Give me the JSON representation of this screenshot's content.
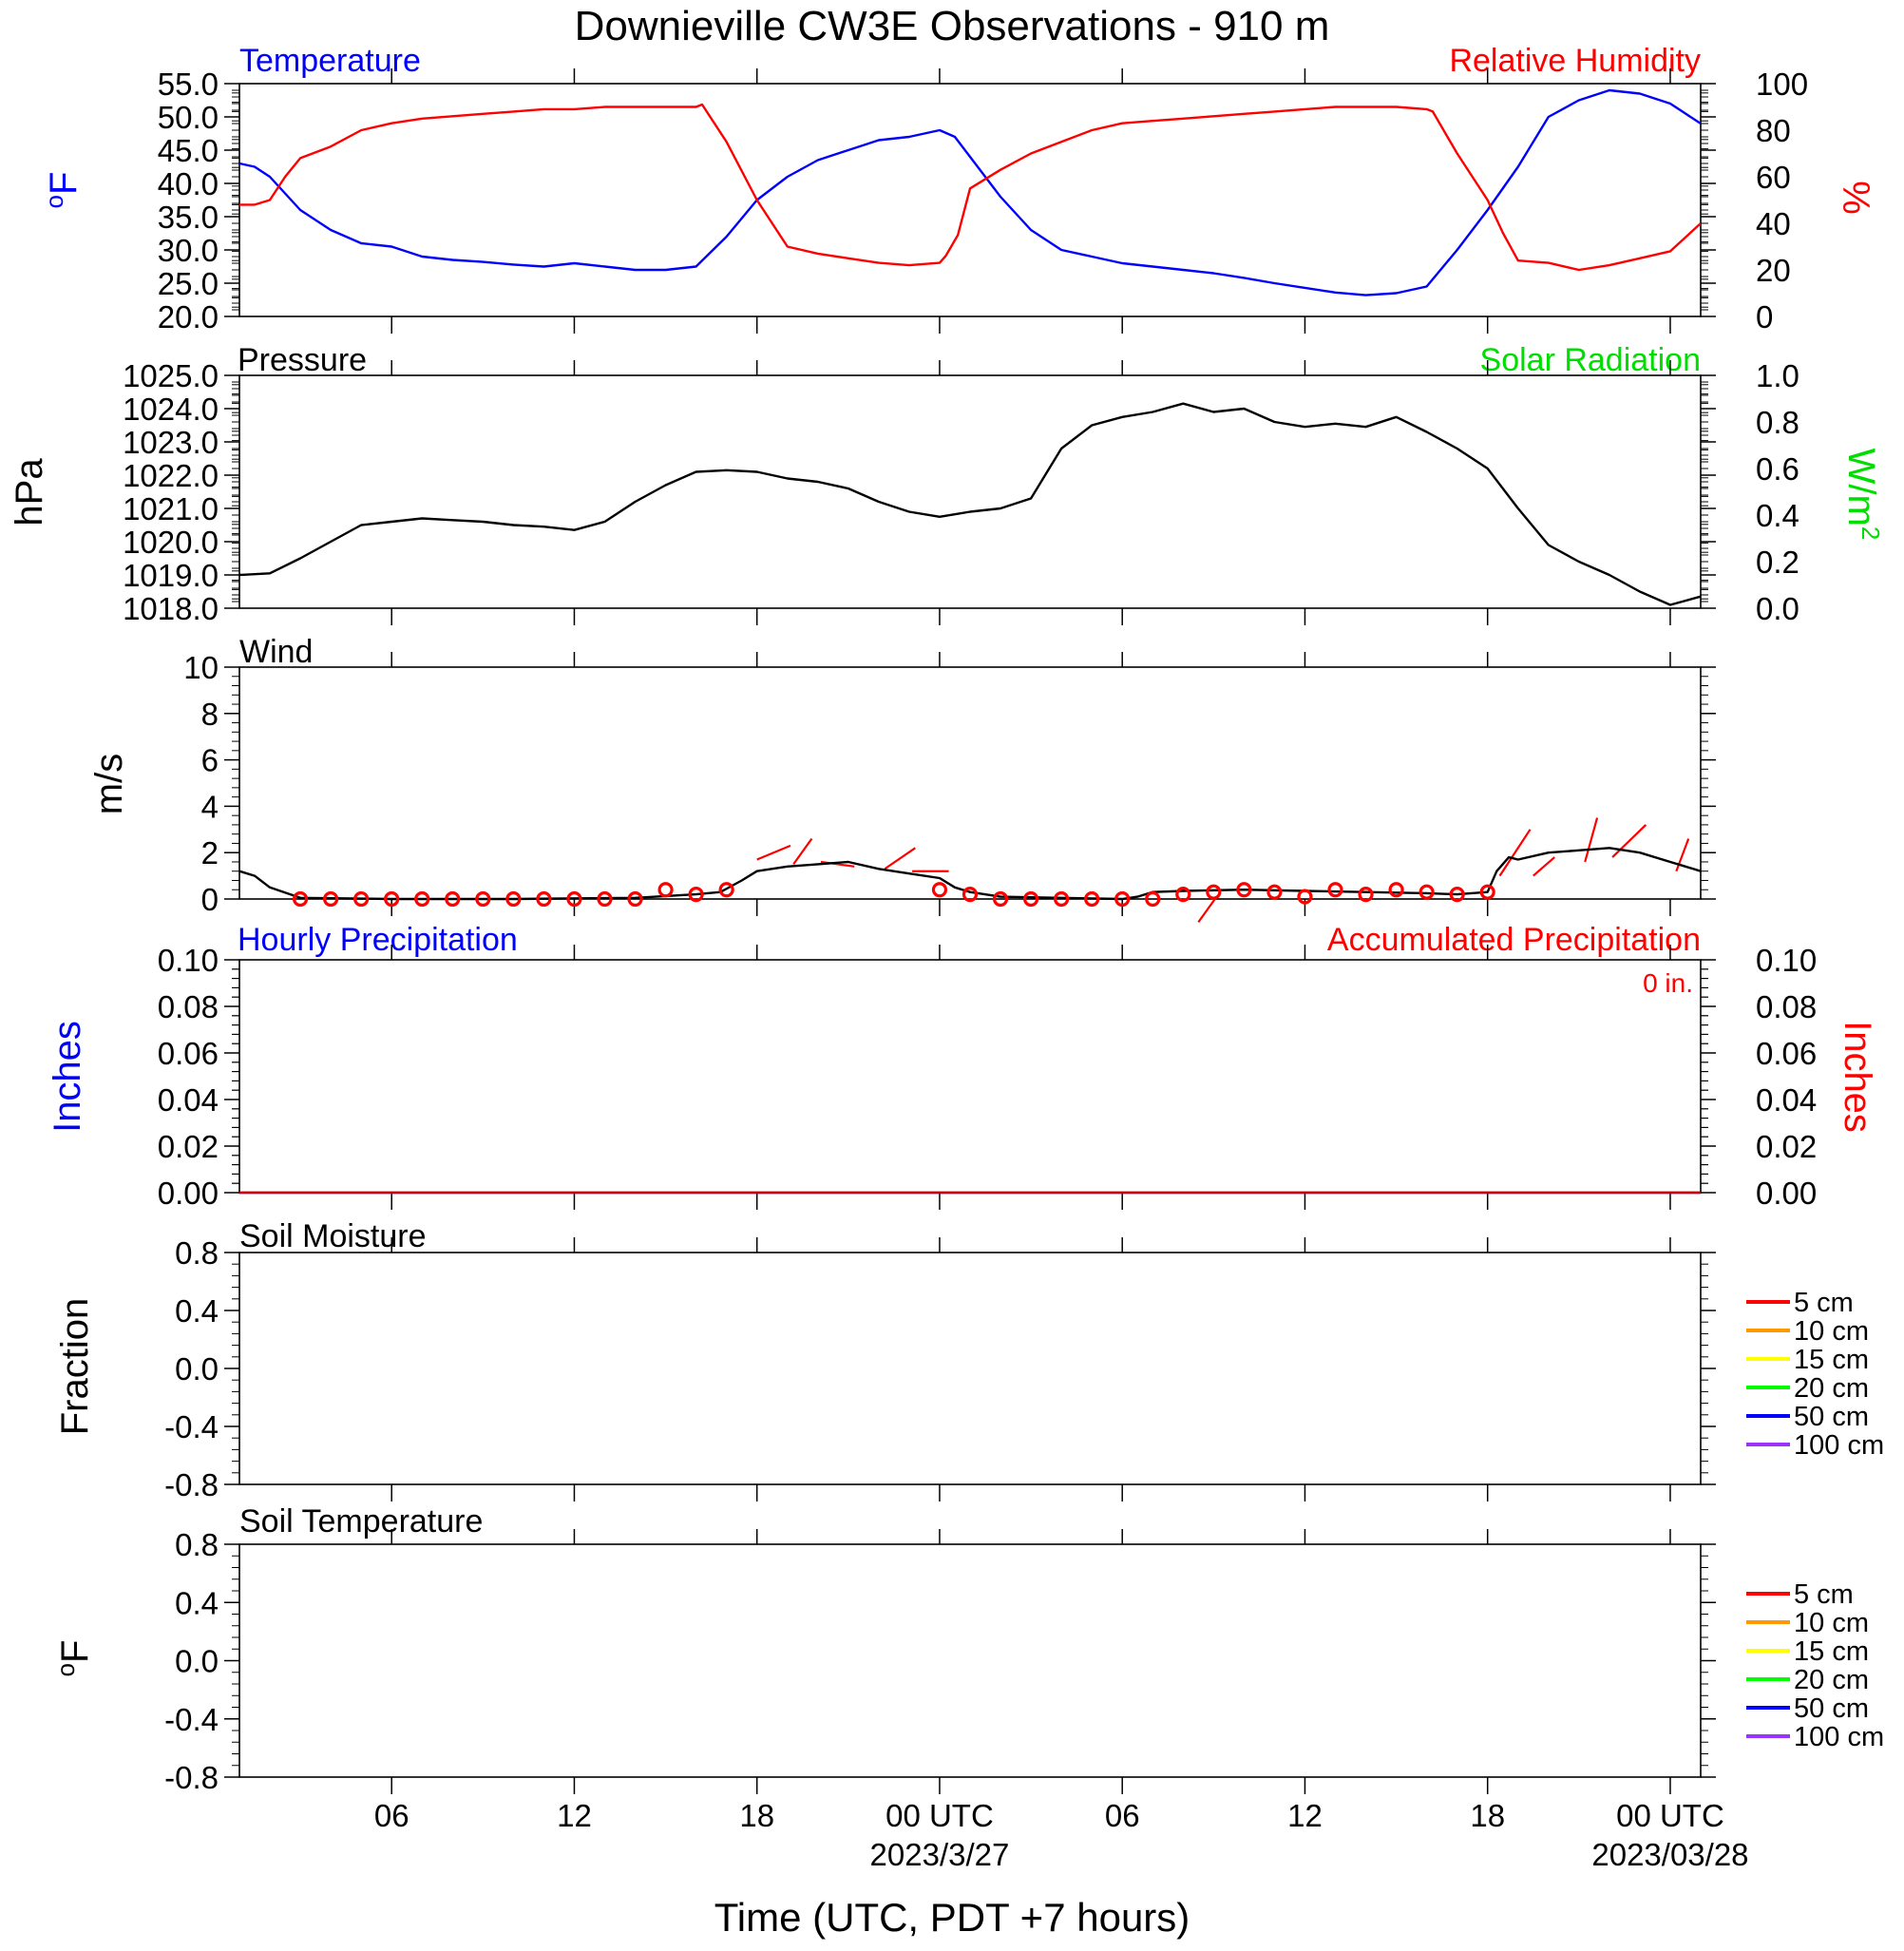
{
  "title": "Downieville CW3E Observations - 910 m",
  "xaxis": {
    "label": "Time (UTC, PDT +7 hours)",
    "ticks": [
      {
        "hour": 6,
        "label": "06",
        "date": ""
      },
      {
        "hour": 12,
        "label": "12",
        "date": ""
      },
      {
        "hour": 18,
        "label": "18",
        "date": ""
      },
      {
        "hour": 24,
        "label": "00 UTC",
        "date": "2023/3/27"
      },
      {
        "hour": 30,
        "label": "06",
        "date": ""
      },
      {
        "hour": 36,
        "label": "12",
        "date": ""
      },
      {
        "hour": 42,
        "label": "18",
        "date": ""
      },
      {
        "hour": 48,
        "label": "00 UTC",
        "date": "2023/03/28"
      }
    ],
    "range_hours": [
      1,
      49
    ]
  },
  "chart_data": [
    {
      "id": "temp_rh",
      "type": "line",
      "left_title": "Temperature",
      "right_title": "Relative Humidity",
      "left_axis": {
        "label": "°F",
        "range": [
          20,
          55
        ],
        "ticks": [
          "55.0",
          "50.0",
          "45.0",
          "40.0",
          "35.0",
          "30.0",
          "25.0",
          "20.0"
        ]
      },
      "right_axis": {
        "label": "%",
        "range": [
          0,
          100
        ],
        "ticks": [
          "100",
          "80",
          "60",
          "40",
          "20",
          "0"
        ]
      },
      "series": [
        {
          "name": "Temperature",
          "color": "#0000ff",
          "axis": "left",
          "x": [
            1,
            1.5,
            2,
            3,
            4,
            5,
            6,
            7,
            8,
            9,
            10,
            11,
            12,
            13,
            14,
            15,
            16,
            17,
            18,
            19,
            20,
            21,
            22,
            23,
            24,
            24.5,
            25,
            26,
            27,
            28,
            29,
            30,
            31,
            32,
            33,
            34,
            35,
            36,
            37,
            38,
            39,
            40,
            41,
            42,
            43,
            44,
            45,
            46,
            47,
            48,
            48.5,
            49
          ],
          "y": [
            43,
            42.5,
            41,
            36,
            33,
            31,
            30.5,
            29,
            28.5,
            28.2,
            27.8,
            27.5,
            28,
            27.5,
            27,
            27,
            27.5,
            32,
            37.5,
            41,
            43.5,
            45,
            46.5,
            47,
            48,
            47,
            44,
            38,
            33,
            30,
            29,
            28,
            27.5,
            27,
            26.5,
            25.8,
            25,
            24.3,
            23.6,
            23.2,
            23.5,
            24.5,
            30,
            36,
            42.5,
            50,
            52.5,
            54,
            53.5,
            52,
            50.5,
            49
          ]
        },
        {
          "name": "Relative Humidity",
          "color": "#ff0000",
          "axis": "right",
          "x": [
            1,
            1.5,
            2,
            2.5,
            3,
            4,
            5,
            6,
            7,
            8,
            9,
            10,
            11,
            12,
            13,
            14,
            15,
            16,
            16.2,
            17,
            18,
            19,
            20,
            21,
            22,
            23,
            24,
            24.2,
            24.6,
            25,
            26,
            27,
            28,
            29,
            30,
            31,
            32,
            33,
            34,
            35,
            36,
            37,
            38,
            39,
            40,
            40.2,
            41,
            42,
            42.5,
            43,
            44,
            45,
            46,
            47,
            48,
            48.5,
            49
          ],
          "y": [
            48,
            48,
            50,
            60,
            68,
            73,
            80,
            83,
            85,
            86,
            87,
            88,
            89,
            89,
            90,
            90,
            90,
            90,
            91,
            75,
            50,
            30,
            27,
            25,
            23,
            22,
            23,
            26,
            35,
            55,
            63,
            70,
            75,
            80,
            83,
            84,
            85,
            86,
            87,
            88,
            89,
            90,
            90,
            90,
            89,
            88,
            70,
            50,
            36,
            24,
            23,
            20,
            22,
            25,
            28,
            34,
            40
          ]
        }
      ]
    },
    {
      "id": "pressure",
      "type": "line",
      "left_title": "Pressure",
      "right_title": "Solar Radiation",
      "left_axis": {
        "label": "hPa",
        "range": [
          1018,
          1025
        ],
        "ticks": [
          "1025.0",
          "1024.0",
          "1023.0",
          "1022.0",
          "1021.0",
          "1020.0",
          "1019.0",
          "1018.0"
        ]
      },
      "right_axis": {
        "label": "W/m2",
        "range": [
          0,
          1
        ],
        "ticks": [
          "1.0",
          "0.8",
          "0.6",
          "0.4",
          "0.2",
          "0.0"
        ]
      },
      "series": [
        {
          "name": "Pressure",
          "color": "#000000",
          "axis": "left",
          "x": [
            1,
            2,
            3,
            4,
            5,
            6,
            7,
            8,
            9,
            10,
            11,
            12,
            13,
            14,
            15,
            16,
            17,
            18,
            19,
            20,
            21,
            22,
            23,
            24,
            25,
            26,
            27,
            28,
            29,
            30,
            31,
            32,
            33,
            34,
            35,
            36,
            37,
            38,
            39,
            40,
            41,
            42,
            43,
            44,
            45,
            46,
            47,
            48,
            49
          ],
          "y": [
            1019,
            1019.05,
            1019.5,
            1020,
            1020.5,
            1020.6,
            1020.7,
            1020.65,
            1020.6,
            1020.5,
            1020.45,
            1020.35,
            1020.6,
            1021.2,
            1021.7,
            1022.1,
            1022.15,
            1022.1,
            1021.9,
            1021.8,
            1021.6,
            1021.2,
            1020.9,
            1020.75,
            1020.9,
            1021,
            1021.3,
            1022.8,
            1023.5,
            1023.75,
            1023.9,
            1024.15,
            1023.9,
            1024,
            1023.6,
            1023.45,
            1023.55,
            1023.45,
            1023.75,
            1023.3,
            1022.8,
            1022.2,
            1021,
            1019.9,
            1019.4,
            1019,
            1018.5,
            1018.1,
            1018.35
          ]
        }
      ]
    },
    {
      "id": "wind",
      "type": "line",
      "left_title": "Wind",
      "left_axis": {
        "label": "m/s",
        "range": [
          0,
          10
        ],
        "ticks": [
          "10",
          "8",
          "6",
          "4",
          "2",
          "0"
        ]
      },
      "series": [
        {
          "name": "Wind",
          "color": "#000000",
          "axis": "left",
          "x": [
            1,
            1.5,
            2,
            3,
            6,
            10,
            14,
            16,
            16.8,
            17.5,
            18,
            19,
            20,
            21,
            22,
            23,
            24,
            24.5,
            25,
            26,
            28,
            30,
            30.5,
            31,
            32,
            34,
            36,
            38,
            40,
            41,
            42,
            42.3,
            42.7,
            43,
            44,
            45,
            46,
            47,
            48,
            48.5,
            49
          ],
          "y": [
            1.2,
            1,
            0.5,
            0.05,
            0,
            0,
            0.05,
            0.2,
            0.3,
            0.8,
            1.2,
            1.4,
            1.5,
            1.6,
            1.3,
            1.1,
            0.9,
            0.5,
            0.3,
            0.1,
            0.05,
            0,
            0.1,
            0.3,
            0.35,
            0.4,
            0.35,
            0.3,
            0.25,
            0.2,
            0.3,
            1.2,
            1.8,
            1.7,
            2,
            2.1,
            2.2,
            2,
            1.6,
            1.4,
            1.2
          ]
        },
        {
          "name": "Hourly Wind",
          "color": "#ff0000",
          "axis": "left",
          "marker": "circle",
          "x": [
            3,
            4,
            5,
            6,
            7,
            8,
            9,
            10,
            11,
            12,
            13,
            14,
            15,
            16,
            17,
            24,
            25,
            26,
            27,
            28,
            29,
            30,
            31,
            32,
            33,
            34,
            35,
            36,
            37,
            38,
            39,
            40,
            41,
            42
          ],
          "y": [
            0,
            0,
            0,
            0,
            0,
            0,
            0,
            0,
            0,
            0,
            0,
            0,
            0.4,
            0.2,
            0.4,
            0.4,
            0.2,
            0,
            0,
            0,
            0,
            0,
            0,
            0.2,
            0.3,
            0.4,
            0.3,
            0.1,
            0.4,
            0.2,
            0.4,
            0.3,
            0.2,
            0.3
          ]
        }
      ],
      "barbs": [
        {
          "x": 18,
          "y": 1.7,
          "x2": 19.1,
          "y2": 2.3
        },
        {
          "x": 19.2,
          "y": 1.5,
          "x2": 19.8,
          "y2": 2.6
        },
        {
          "x": 21.2,
          "y": 1.4,
          "x2": 20.1,
          "y2": 1.6
        },
        {
          "x": 22.2,
          "y": 1.3,
          "x2": 23.2,
          "y2": 2.2
        },
        {
          "x": 23.1,
          "y": 1.2,
          "x2": 24.3,
          "y2": 1.2
        },
        {
          "x": 32.5,
          "y": -1.0,
          "x2": 33.1,
          "y2": 0.1
        },
        {
          "x": 42.4,
          "y": 1.0,
          "x2": 43.4,
          "y2": 3.0
        },
        {
          "x": 43.5,
          "y": 1.0,
          "x2": 44.2,
          "y2": 1.8
        },
        {
          "x": 45.2,
          "y": 1.6,
          "x2": 45.6,
          "y2": 3.5
        },
        {
          "x": 46.1,
          "y": 1.8,
          "x2": 47.2,
          "y2": 3.2
        },
        {
          "x": 48.2,
          "y": 1.2,
          "x2": 48.6,
          "y2": 2.6
        }
      ]
    },
    {
      "id": "precip",
      "type": "line",
      "left_title": "Hourly Precipitation",
      "right_title": "Accumulated Precipitation",
      "annotation": "0 in.",
      "left_axis": {
        "label": "Inches",
        "range": [
          0,
          0.1
        ],
        "ticks": [
          "0.10",
          "0.08",
          "0.06",
          "0.04",
          "0.02",
          "0.00"
        ]
      },
      "right_axis": {
        "label": "Inches",
        "range": [
          0,
          0.1
        ],
        "ticks": [
          "0.10",
          "0.08",
          "0.06",
          "0.04",
          "0.02",
          "0.00"
        ]
      },
      "series": [
        {
          "name": "Hourly Precipitation",
          "color": "#0000ff",
          "axis": "left",
          "x": [
            1,
            49
          ],
          "y": [
            0,
            0
          ]
        },
        {
          "name": "Accumulated Precipitation",
          "color": "#cc0000",
          "axis": "right",
          "x": [
            1,
            49
          ],
          "y": [
            0,
            0
          ]
        }
      ]
    },
    {
      "id": "soil_moisture",
      "type": "line",
      "left_title": "Soil Moisture",
      "left_axis": {
        "label": "Fraction",
        "range": [
          -1,
          1
        ],
        "ticks": [
          "0.8",
          "0.4",
          "0.0",
          "-0.4",
          "-0.8"
        ]
      },
      "legend": [
        {
          "label": "5 cm",
          "color": "#ff0000"
        },
        {
          "label": "10 cm",
          "color": "#ff9900"
        },
        {
          "label": "15 cm",
          "color": "#ffff00"
        },
        {
          "label": "20 cm",
          "color": "#00ff00"
        },
        {
          "label": "50 cm",
          "color": "#0000ff"
        },
        {
          "label": "100 cm",
          "color": "#9933ff"
        }
      ],
      "series": []
    },
    {
      "id": "soil_temperature",
      "type": "line",
      "left_title": "Soil Temperature",
      "left_axis": {
        "label": "°F",
        "range": [
          -1,
          1
        ],
        "ticks": [
          "0.8",
          "0.4",
          "0.0",
          "-0.4",
          "-0.8"
        ]
      },
      "legend": [
        {
          "label": "5 cm",
          "color": "#ff0000"
        },
        {
          "label": "10 cm",
          "color": "#ff9900"
        },
        {
          "label": "15 cm",
          "color": "#ffff00"
        },
        {
          "label": "20 cm",
          "color": "#00ff00"
        },
        {
          "label": "50 cm",
          "color": "#0000ff"
        },
        {
          "label": "100 cm",
          "color": "#9933ff"
        }
      ],
      "series": []
    }
  ],
  "colors": {
    "temperature": "#0000ff",
    "humidity": "#ff0000",
    "pressure": "#000000",
    "solar": "#00dd00",
    "wind": "#000000",
    "wind_marks": "#ff0000",
    "precip_hourly": "#0000ff",
    "precip_accum": "#ff0000"
  }
}
